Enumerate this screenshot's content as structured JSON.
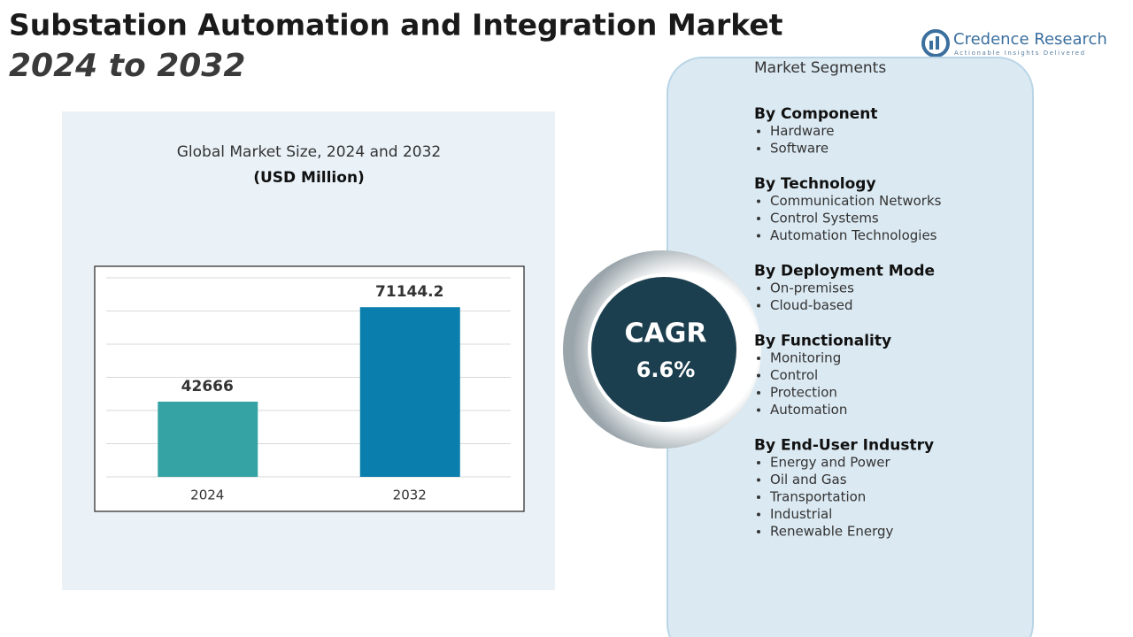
{
  "header": {
    "title": "Substation Automation and Integration Market",
    "subtitle": "2024 to 2032"
  },
  "brand": {
    "name": "Credence Research",
    "tagline": "Actionable Insights Delivered"
  },
  "chart_data": {
    "type": "bar",
    "title": "Global Market Size, 2024 and 2032",
    "subtitle": "(USD Million)",
    "categories": [
      "2024",
      "2032"
    ],
    "values": [
      42666,
      71144.2
    ],
    "colors": [
      "#35a3a3",
      "#0a7fad"
    ],
    "ylim": [
      20000,
      80000
    ],
    "yticks": [
      20000,
      30000,
      40000,
      50000,
      60000,
      70000,
      80000
    ],
    "grid": true
  },
  "cagr": {
    "label": "CAGR",
    "value": "6.6%"
  },
  "segments": {
    "title": "Market Segments",
    "groups": [
      {
        "name": "By Component",
        "items": [
          "Hardware",
          "Software"
        ]
      },
      {
        "name": "By Technology",
        "items": [
          "Communication Networks",
          "Control Systems",
          "Automation Technologies"
        ]
      },
      {
        "name": "By Deployment Mode",
        "items": [
          "On-premises",
          "Cloud-based"
        ]
      },
      {
        "name": "By Functionality",
        "items": [
          "Monitoring",
          "Control",
          "Protection",
          "Automation"
        ]
      },
      {
        "name": "By End-User Industry",
        "items": [
          "Energy and Power",
          "Oil and Gas",
          "Transportation",
          "Industrial",
          "Renewable Energy"
        ]
      }
    ]
  }
}
